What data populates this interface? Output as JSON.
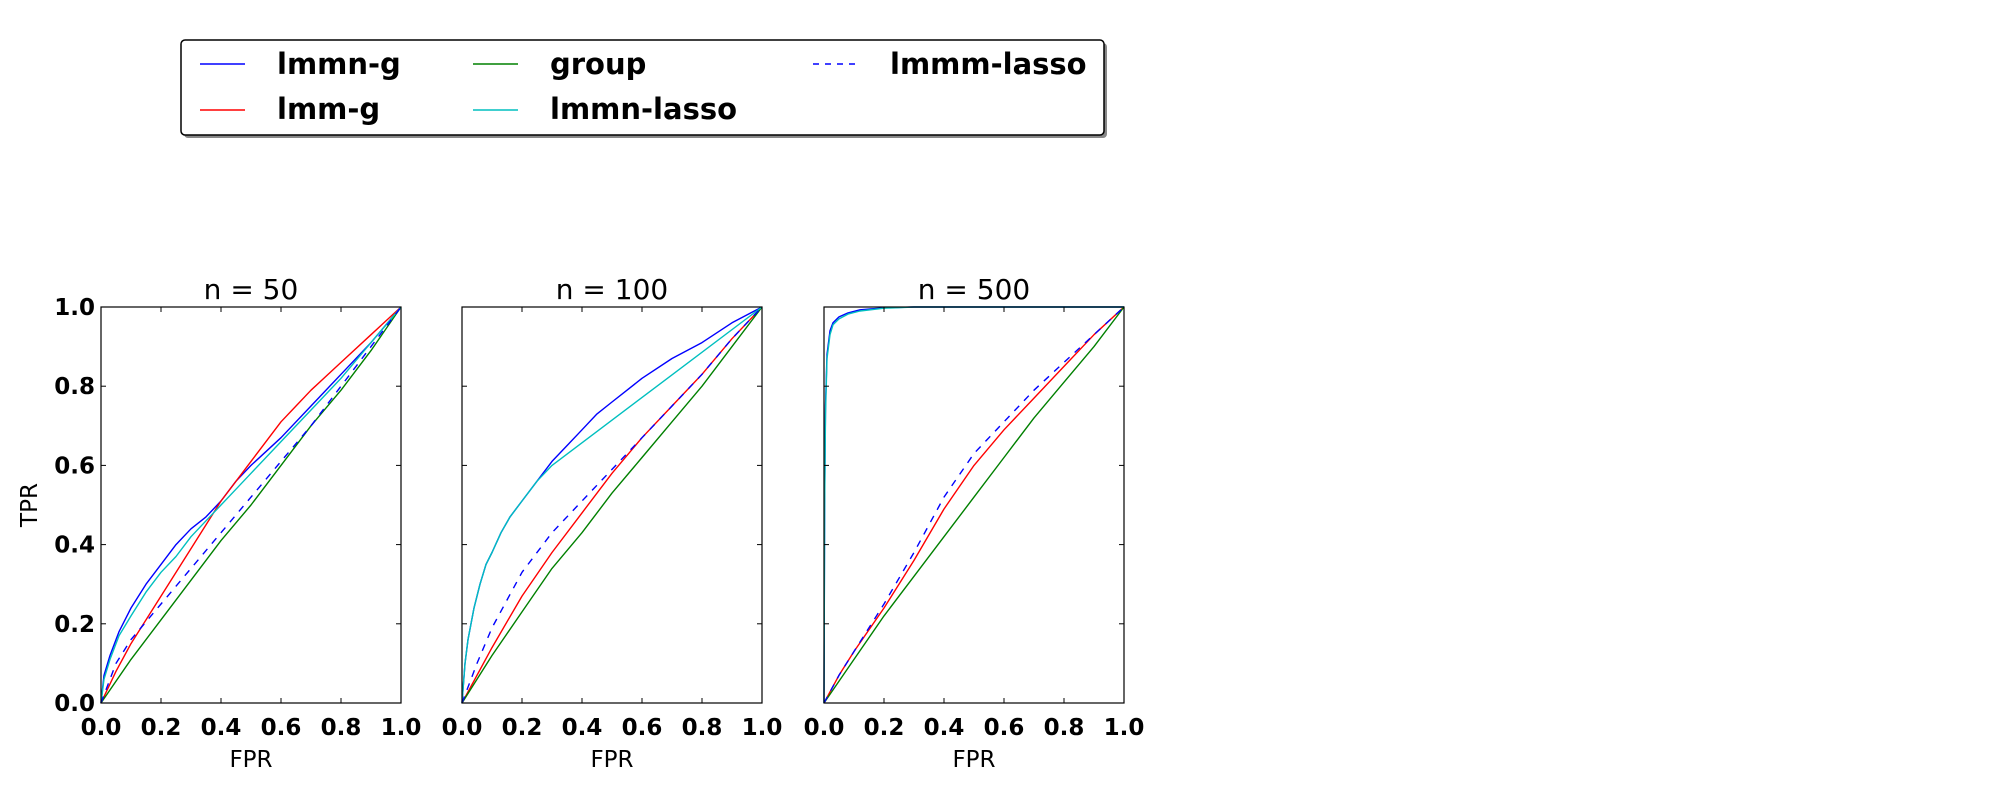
{
  "legend": {
    "entries": [
      {
        "label": "lmmn-g",
        "color": "#0000ff",
        "dash": "solid"
      },
      {
        "label": "lmm-g",
        "color": "#ff0000",
        "dash": "solid"
      },
      {
        "label": "group",
        "color": "#008000",
        "dash": "solid"
      },
      {
        "label": "lmmn-lasso",
        "color": "#00bfbf",
        "dash": "solid"
      },
      {
        "label": "lmmm-lasso",
        "color": "#0000ff",
        "dash": "dashed"
      }
    ]
  },
  "chart_data": [
    {
      "type": "line",
      "title": "n = 50",
      "xlabel": "FPR",
      "ylabel": "TPR",
      "xlim": [
        0,
        1
      ],
      "ylim": [
        0,
        1
      ],
      "xticks": [
        "0.0",
        "0.2",
        "0.4",
        "0.6",
        "0.8",
        "1.0"
      ],
      "yticks": [
        "0.0",
        "0.2",
        "0.4",
        "0.6",
        "0.8",
        "1.0"
      ],
      "series": [
        {
          "name": "lmmn-g",
          "color": "#0000ff",
          "dash": "solid",
          "x": [
            0,
            0.01,
            0.03,
            0.06,
            0.1,
            0.15,
            0.2,
            0.25,
            0.3,
            0.35,
            0.4,
            0.45,
            0.5,
            0.6,
            0.7,
            0.8,
            0.9,
            1.0
          ],
          "y": [
            0,
            0.07,
            0.12,
            0.18,
            0.24,
            0.3,
            0.35,
            0.4,
            0.44,
            0.47,
            0.51,
            0.56,
            0.6,
            0.67,
            0.75,
            0.83,
            0.91,
            1.0
          ]
        },
        {
          "name": "lmm-g",
          "color": "#ff0000",
          "dash": "solid",
          "x": [
            0,
            0.05,
            0.1,
            0.2,
            0.3,
            0.4,
            0.5,
            0.6,
            0.65,
            0.7,
            0.8,
            0.9,
            1.0
          ],
          "y": [
            0,
            0.08,
            0.15,
            0.27,
            0.39,
            0.51,
            0.61,
            0.71,
            0.75,
            0.79,
            0.86,
            0.93,
            1.0
          ]
        },
        {
          "name": "group",
          "color": "#008000",
          "dash": "solid",
          "x": [
            0,
            0.1,
            0.2,
            0.3,
            0.4,
            0.5,
            0.6,
            0.7,
            0.8,
            0.9,
            1.0
          ],
          "y": [
            0,
            0.11,
            0.21,
            0.31,
            0.41,
            0.5,
            0.6,
            0.7,
            0.79,
            0.89,
            1.0
          ]
        },
        {
          "name": "lmmn-lasso",
          "color": "#00bfbf",
          "dash": "solid",
          "x": [
            0,
            0.01,
            0.03,
            0.06,
            0.1,
            0.15,
            0.2,
            0.25,
            0.3,
            0.35,
            0.4,
            0.45,
            0.5,
            0.6,
            0.7,
            0.8,
            0.9,
            1.0
          ],
          "y": [
            0,
            0.06,
            0.11,
            0.17,
            0.22,
            0.28,
            0.33,
            0.37,
            0.42,
            0.46,
            0.5,
            0.54,
            0.58,
            0.66,
            0.74,
            0.82,
            0.91,
            1.0
          ]
        },
        {
          "name": "lmmm-lasso",
          "color": "#0000ff",
          "dash": "dashed",
          "x": [
            0,
            0.05,
            0.1,
            0.2,
            0.3,
            0.4,
            0.5,
            0.6,
            0.7,
            0.8,
            0.9,
            1.0
          ],
          "y": [
            0,
            0.1,
            0.16,
            0.25,
            0.34,
            0.43,
            0.52,
            0.61,
            0.7,
            0.8,
            0.9,
            1.0
          ]
        }
      ]
    },
    {
      "type": "line",
      "title": "n = 100",
      "xlabel": "FPR",
      "ylabel": "",
      "xlim": [
        0,
        1
      ],
      "ylim": [
        0,
        1
      ],
      "xticks": [
        "0.0",
        "0.2",
        "0.4",
        "0.6",
        "0.8",
        "1.0"
      ],
      "yticks": [],
      "series": [
        {
          "name": "lmmn-g",
          "color": "#0000ff",
          "dash": "solid",
          "x": [
            0,
            0.01,
            0.02,
            0.04,
            0.06,
            0.08,
            0.1,
            0.13,
            0.16,
            0.2,
            0.25,
            0.3,
            0.35,
            0.4,
            0.45,
            0.5,
            0.55,
            0.6,
            0.7,
            0.8,
            0.9,
            1.0
          ],
          "y": [
            0,
            0.1,
            0.16,
            0.24,
            0.3,
            0.35,
            0.38,
            0.43,
            0.47,
            0.51,
            0.56,
            0.61,
            0.65,
            0.69,
            0.73,
            0.76,
            0.79,
            0.82,
            0.87,
            0.91,
            0.96,
            1.0
          ]
        },
        {
          "name": "lmm-g",
          "color": "#ff0000",
          "dash": "solid",
          "x": [
            0,
            0.1,
            0.2,
            0.3,
            0.4,
            0.5,
            0.6,
            0.7,
            0.8,
            0.9,
            1.0
          ],
          "y": [
            0,
            0.14,
            0.27,
            0.38,
            0.48,
            0.58,
            0.67,
            0.75,
            0.83,
            0.92,
            1.0
          ]
        },
        {
          "name": "group",
          "color": "#008000",
          "dash": "solid",
          "x": [
            0,
            0.1,
            0.2,
            0.3,
            0.4,
            0.5,
            0.6,
            0.7,
            0.8,
            0.9,
            1.0
          ],
          "y": [
            0,
            0.12,
            0.23,
            0.34,
            0.43,
            0.53,
            0.62,
            0.71,
            0.8,
            0.9,
            1.0
          ]
        },
        {
          "name": "lmmn-lasso",
          "color": "#00bfbf",
          "dash": "solid",
          "x": [
            0,
            0.01,
            0.02,
            0.04,
            0.06,
            0.08,
            0.1,
            0.13,
            0.16,
            0.2,
            0.25,
            0.3,
            1.0
          ],
          "y": [
            0,
            0.1,
            0.16,
            0.24,
            0.3,
            0.35,
            0.38,
            0.43,
            0.47,
            0.51,
            0.56,
            0.6,
            1.0
          ]
        },
        {
          "name": "lmmm-lasso",
          "color": "#0000ff",
          "dash": "dashed",
          "x": [
            0,
            0.05,
            0.1,
            0.2,
            0.3,
            0.4,
            0.5,
            0.6,
            0.7,
            0.8,
            0.9,
            1.0
          ],
          "y": [
            0,
            0.1,
            0.19,
            0.33,
            0.43,
            0.51,
            0.59,
            0.67,
            0.75,
            0.83,
            0.92,
            1.0
          ]
        }
      ]
    },
    {
      "type": "line",
      "title": "n = 500",
      "xlabel": "FPR",
      "ylabel": "",
      "xlim": [
        0,
        1
      ],
      "ylim": [
        0,
        1
      ],
      "xticks": [
        "0.0",
        "0.2",
        "0.4",
        "0.6",
        "0.8",
        "1.0"
      ],
      "yticks": [],
      "series": [
        {
          "name": "lmmn-g",
          "color": "#0000ff",
          "dash": "solid",
          "x": [
            0,
            0.002,
            0.005,
            0.01,
            0.02,
            0.03,
            0.05,
            0.08,
            0.12,
            0.2,
            0.3,
            1.0
          ],
          "y": [
            0,
            0.5,
            0.75,
            0.88,
            0.94,
            0.96,
            0.975,
            0.985,
            0.993,
            0.998,
            1.0,
            1.0
          ]
        },
        {
          "name": "lmm-g",
          "color": "#ff0000",
          "dash": "solid",
          "x": [
            0,
            0.05,
            0.1,
            0.2,
            0.3,
            0.4,
            0.5,
            0.6,
            0.7,
            0.8,
            0.9,
            1.0
          ],
          "y": [
            0,
            0.07,
            0.13,
            0.24,
            0.36,
            0.49,
            0.6,
            0.69,
            0.77,
            0.85,
            0.93,
            1.0
          ]
        },
        {
          "name": "group",
          "color": "#008000",
          "dash": "solid",
          "x": [
            0,
            0.1,
            0.2,
            0.3,
            0.4,
            0.5,
            0.6,
            0.7,
            0.8,
            0.9,
            1.0
          ],
          "y": [
            0,
            0.11,
            0.22,
            0.32,
            0.42,
            0.52,
            0.62,
            0.72,
            0.81,
            0.9,
            1.0
          ]
        },
        {
          "name": "lmmn-lasso",
          "color": "#00bfbf",
          "dash": "solid",
          "x": [
            0,
            0.002,
            0.005,
            0.01,
            0.02,
            0.03,
            0.05,
            0.08,
            0.12,
            0.2,
            0.3,
            1.0
          ],
          "y": [
            0,
            0.48,
            0.73,
            0.87,
            0.93,
            0.955,
            0.97,
            0.982,
            0.99,
            0.997,
            1.0,
            1.0
          ]
        },
        {
          "name": "lmmm-lasso",
          "color": "#0000ff",
          "dash": "dashed",
          "x": [
            0,
            0.05,
            0.1,
            0.2,
            0.3,
            0.4,
            0.5,
            0.6,
            0.7,
            0.8,
            0.9,
            1.0
          ],
          "y": [
            0,
            0.07,
            0.13,
            0.25,
            0.38,
            0.52,
            0.63,
            0.71,
            0.79,
            0.86,
            0.93,
            1.0
          ]
        }
      ]
    }
  ]
}
